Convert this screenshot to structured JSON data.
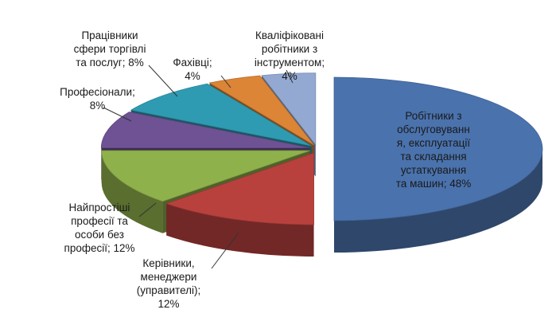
{
  "chart_data": {
    "type": "pie",
    "style": "3d-exploded",
    "title": "",
    "slices": [
      {
        "label": "Робітники з\nобслуговуванн\nя, експлуатації\nта складання\nустаткування\nта машин; 48%",
        "value": 48,
        "color": "#4a72ad"
      },
      {
        "label": "Керівники,\nменеджери\n(управителі);\n12%",
        "value": 12,
        "color": "#b8413e"
      },
      {
        "label": "Найпростіші\nпрофесії та\nособи без\nпрофесії; 12%",
        "value": 12,
        "color": "#8fb14b"
      },
      {
        "label": "Професіонали;\n8%",
        "value": 8,
        "color": "#6e5293"
      },
      {
        "label": "Працівники\nсфери торгівлі\nта послуг; 8%",
        "value": 8,
        "color": "#2f9bb2"
      },
      {
        "label": "Фахівці;\n4%",
        "value": 4,
        "color": "#dc8537"
      },
      {
        "label": "Кваліфіковані\nробітники з\nінструментом;\n4%",
        "value": 4,
        "color": "#93a9d1"
      }
    ]
  }
}
